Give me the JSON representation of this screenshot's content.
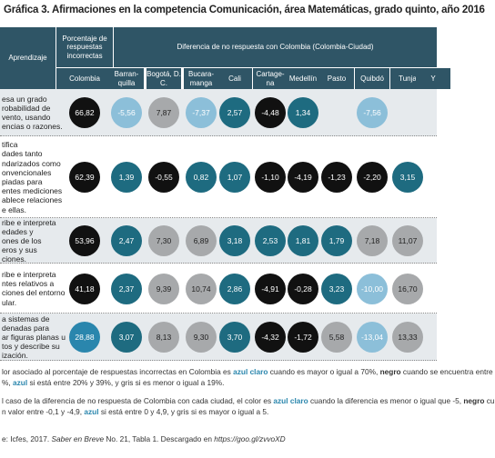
{
  "header": {
    "title": "Gráfica 3. Afirmaciones en la competencia Comunicación, área Matemáticas, grado quinto, año 2016"
  },
  "table": {
    "columns": {
      "learning": "Aprendizaje",
      "percentage": "Porcentaje de respuestas incorrectas",
      "difference": "Diferencia de no respuesta con Colombia (Colombia-Ciudad)",
      "sub": [
        "Colombia",
        "Barran-quilla",
        "Bogotá, D. C.",
        "Bucara-manga",
        "Cali",
        "Cartage-na",
        "Medellín",
        "Pasto",
        "Quibdó",
        "Tunja",
        "Y"
      ]
    },
    "rows": [
      {
        "label": [
          "esa un grado",
          "robabilidad de",
          "vento, usando",
          "encias o razones."
        ],
        "cells": [
          "66,82",
          "-5,56",
          "7,87",
          "-7,37",
          "2,57",
          "-4,48",
          "1,34",
          null,
          "-7,56",
          null,
          null
        ],
        "colors": [
          "#111111",
          "#8cbfd9",
          "#a7a9ab",
          "#8cbfd9",
          "#1e6b80",
          "#111111",
          "#1e6b80",
          null,
          "#8cbfd9",
          null,
          null
        ]
      },
      {
        "label": [
          "tifica",
          "dades tanto",
          "ndarizados como",
          "onvencionales",
          "piadas para",
          "entes mediciones",
          "ablece relaciones",
          "e ellas."
        ],
        "cells": [
          "62,39",
          "1,39",
          "-0,55",
          "0,82",
          "1,07",
          "-1,10",
          "-4,19",
          "-1,23",
          "-2,20",
          "3,15",
          null
        ],
        "colors": [
          "#111111",
          "#1e6b80",
          "#111111",
          "#1e6b80",
          "#1e6b80",
          "#111111",
          "#111111",
          "#111111",
          "#111111",
          "#1e6b80",
          null
        ]
      },
      {
        "label": [
          "ribe e interpreta",
          "edades y",
          "ones de los",
          "eros y sus",
          "ciones."
        ],
        "cells": [
          "53,96",
          "2,47",
          "7,30",
          "6,89",
          "3,18",
          "2,53",
          "1,81",
          "1,79",
          "7,18",
          "11,07",
          null
        ],
        "colors": [
          "#111111",
          "#1e6b80",
          "#a7a9ab",
          "#a7a9ab",
          "#1e6b80",
          "#1e6b80",
          "#1e6b80",
          "#1e6b80",
          "#a7a9ab",
          "#a7a9ab",
          null
        ]
      },
      {
        "label": [
          "ribe e interpreta",
          "ntes relativos a",
          "ciones del entorno",
          "ular."
        ],
        "cells": [
          "41,18",
          "2,37",
          "9,39",
          "10,74",
          "2,86",
          "-4,91",
          "-0,28",
          "3,23",
          "-10,00",
          "16,70",
          null
        ],
        "colors": [
          "#111111",
          "#1e6b80",
          "#a7a9ab",
          "#a7a9ab",
          "#1e6b80",
          "#111111",
          "#111111",
          "#1e6b80",
          "#8cbfd9",
          "#a7a9ab",
          null
        ]
      },
      {
        "label": [
          "a sistemas de",
          "denadas para",
          "ar figuras planas u",
          "tos y describe su",
          "ización."
        ],
        "cells": [
          "28,88",
          "3,07",
          "8,13",
          "9,30",
          "3,70",
          "-4,32",
          "-1,72",
          "5,58",
          "-13,04",
          "13,33",
          null
        ],
        "colors": [
          "#2a86ad",
          "#1e6b80",
          "#a7a9ab",
          "#a7a9ab",
          "#1e6b80",
          "#111111",
          "#111111",
          "#a7a9ab",
          "#8cbfd9",
          "#a7a9ab",
          null
        ]
      }
    ]
  },
  "notes": [
    [
      "lor asociado al porcentaje de respuestas incorrectas en Colombia es ",
      "azul claro",
      " cuando es mayor o igual a 70%, ",
      "negro",
      " cuando se encuentra entre"
    ],
    [
      "%, ",
      "azul",
      " si está entre 20% y 39%, y gris si es menor o igual a 19%."
    ],
    [
      "l caso de la diferencia de no respuesta de Colombia con cada ciudad, el color es ",
      "azul claro",
      " cuando la diferencia es menor o igual que -5, ",
      "negro",
      " cu"
    ],
    [
      "n valor entre -0,1 y -4,9, ",
      "azul",
      " si está entre 0 y 4,9, y gris si es mayor o igual a 5."
    ]
  ],
  "source": [
    "e: Icfes, 2017. ",
    "Saber en Breve",
    " No. 21, Tabla 1. Descargado en ",
    "https://goo.gl/zvvoXD"
  ]
}
